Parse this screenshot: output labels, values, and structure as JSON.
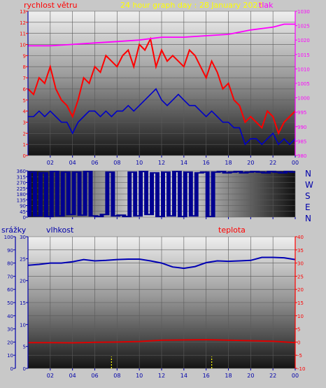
{
  "header": {
    "wind_label": "rychlost větru",
    "title": "24 hour graph day : 28 January 2023",
    "pressure_label": "tlak"
  },
  "lower_header": {
    "rain_label": "srážky",
    "humidity_label": "vlhkost",
    "temp_label": "teplota"
  },
  "compass": [
    "N",
    "W",
    "S",
    "E",
    "N"
  ],
  "colors": {
    "wind_gust": "#ff0000",
    "wind_avg": "#0000c8",
    "pressure": "#ff00ff",
    "direction": "#000090",
    "humidity": "#0000b4",
    "temperature": "#dc0000",
    "rain": "#ffff00",
    "left_axis": "#0000aa",
    "right_axis_pressure": "#ff00ff",
    "right_axis_temp": "#ff0000",
    "header_text": "#ffff00"
  },
  "chart_data": [
    {
      "type": "line",
      "x_ticks": [
        "02",
        "04",
        "06",
        "08",
        "10",
        "12",
        "14",
        "16",
        "18",
        "20",
        "22",
        "00"
      ],
      "ylim_left": [
        0,
        13
      ],
      "y_ticks_left": [
        "0",
        "1",
        "2",
        "3",
        "4",
        "5",
        "6",
        "7",
        "8",
        "9",
        "10",
        "11",
        "12",
        "13"
      ],
      "ylim_right": [
        980,
        1030
      ],
      "y_ticks_right": [
        "980",
        "985",
        "990",
        "995",
        "1000",
        "1005",
        "1010",
        "1015",
        "1020",
        "1025",
        "1030"
      ],
      "series": [
        {
          "name": "rychlost větru",
          "axis": "left",
          "x": [
            0,
            0.5,
            1,
            1.5,
            2,
            2.5,
            3,
            3.5,
            4,
            4.5,
            5,
            5.5,
            6,
            6.5,
            7,
            7.5,
            8,
            8.5,
            9,
            9.5,
            10,
            10.5,
            11,
            11.5,
            12,
            12.5,
            13,
            13.5,
            14,
            14.5,
            15,
            15.5,
            16,
            16.5,
            17,
            17.5,
            18,
            18.5,
            19,
            19.5,
            20,
            20.5,
            21,
            21.5,
            22,
            22.5,
            23,
            23.5,
            24
          ],
          "values": [
            6,
            5.5,
            7,
            6.5,
            8,
            6,
            5,
            4.5,
            3.5,
            5,
            7,
            6.5,
            8,
            7.5,
            9,
            8.5,
            8,
            9,
            9.5,
            8,
            10,
            9.5,
            10.5,
            8,
            9.5,
            8.5,
            9,
            8.5,
            8,
            9.5,
            9,
            8,
            7,
            8.5,
            7.5,
            6,
            6.5,
            5,
            4.5,
            3,
            3.5,
            3,
            2.5,
            4,
            3.5,
            2,
            3,
            3.5,
            4
          ]
        },
        {
          "axis": "left",
          "x": [
            0,
            0.5,
            1,
            1.5,
            2,
            2.5,
            3,
            3.5,
            4,
            4.5,
            5,
            5.5,
            6,
            6.5,
            7,
            7.5,
            8,
            8.5,
            9,
            9.5,
            10,
            10.5,
            11,
            11.5,
            12,
            12.5,
            13,
            13.5,
            14,
            14.5,
            15,
            15.5,
            16,
            16.5,
            17,
            17.5,
            18,
            18.5,
            19,
            19.5,
            20,
            20.5,
            21,
            21.5,
            22,
            22.5,
            23,
            23.5,
            24
          ],
          "values": [
            3.5,
            3.5,
            4,
            3.5,
            4,
            3.5,
            3,
            3,
            2,
            3,
            3.5,
            4,
            4,
            3.5,
            4,
            3.5,
            4,
            4,
            4.5,
            4,
            4.5,
            5,
            5.5,
            6,
            5,
            4.5,
            5,
            5.5,
            5,
            4.5,
            4.5,
            4,
            3.5,
            4,
            3.5,
            3,
            3,
            2.5,
            2.5,
            1,
            1.5,
            1.5,
            1,
            1.5,
            2,
            1,
            1.5,
            1,
            1.5
          ]
        },
        {
          "name": "tlak",
          "axis": "right",
          "x": [
            0,
            2,
            4,
            6,
            8,
            10,
            12,
            14,
            16,
            18,
            20,
            22,
            23,
            24
          ],
          "values": [
            1018,
            1018,
            1018.5,
            1019,
            1019.5,
            1020,
            1021,
            1021,
            1021.5,
            1022,
            1023.5,
            1024.5,
            1025.5,
            1025.5
          ]
        }
      ]
    },
    {
      "type": "line",
      "x_ticks": [
        "02",
        "04",
        "06",
        "08",
        "10",
        "12",
        "14",
        "16",
        "18",
        "20",
        "22",
        "00"
      ],
      "ylim": [
        0,
        360
      ],
      "y_ticks": [
        "0",
        "45",
        "90",
        "135",
        "180",
        "225",
        "270",
        "315",
        "360"
      ],
      "series": [
        {
          "x": [
            0,
            0.5,
            1,
            1.5,
            2,
            2.5,
            3,
            3.5,
            4,
            4.5,
            5,
            5.5,
            6,
            6.5,
            7,
            7.5,
            8,
            8.5,
            9,
            9.5,
            10,
            10.5,
            11,
            11.5,
            12,
            12.5,
            13,
            13.5,
            14,
            14.5,
            15,
            15.5,
            16,
            16.5,
            17,
            17.5,
            18,
            18.5,
            19,
            19.5,
            20,
            20.5,
            21,
            21.5,
            22,
            22.5,
            23,
            23.5,
            24
          ],
          "values": [
            10,
            350,
            10,
            345,
            5,
            355,
            10,
            350,
            20,
            350,
            15,
            355,
            10,
            5,
            20,
            350,
            10,
            15,
            5,
            350,
            10,
            355,
            20,
            345,
            5,
            350,
            10,
            355,
            5,
            350,
            10,
            345,
            350,
            5,
            350,
            355,
            345,
            350,
            355,
            345,
            350,
            355,
            350,
            345,
            355,
            350,
            345,
            355,
            350
          ]
        }
      ]
    },
    {
      "type": "line",
      "x_ticks": [
        "02",
        "04",
        "06",
        "08",
        "10",
        "12",
        "14",
        "16",
        "18",
        "20",
        "22",
        "00"
      ],
      "ylim_rain": [
        0,
        100
      ],
      "y_ticks_rain": [
        "0",
        "10",
        "20",
        "30",
        "40",
        "50",
        "60",
        "70",
        "80",
        "90",
        "100"
      ],
      "ylim_humidity": [
        0,
        30
      ],
      "y_ticks_humidity": [
        "0",
        "5",
        "10",
        "15",
        "20",
        "25",
        "30"
      ],
      "ylim_temp": [
        -10,
        40
      ],
      "y_ticks_temp": [
        "-10",
        "-5",
        "0",
        "5",
        "10",
        "15",
        "20",
        "25",
        "30",
        "35",
        "40"
      ],
      "series": [
        {
          "name": "vlhkost",
          "axis": "humidity",
          "x": [
            0,
            1,
            2,
            3,
            4,
            5,
            6,
            7,
            8,
            9,
            10,
            11,
            12,
            13,
            14,
            15,
            16,
            17,
            18,
            19,
            20,
            21,
            22,
            23,
            24
          ],
          "values": [
            23.5,
            23.7,
            24,
            24,
            24.3,
            24.8,
            24.5,
            24.6,
            24.8,
            24.9,
            24.9,
            24.5,
            24,
            23.1,
            22.8,
            23.2,
            24.1,
            24.5,
            24.4,
            24.5,
            24.6,
            25.3,
            25.3,
            25.2,
            24.8
          ]
        },
        {
          "name": "teplota",
          "axis": "temp",
          "x": [
            0,
            2,
            4,
            6,
            8,
            10,
            12,
            14,
            16,
            18,
            20,
            22,
            24
          ],
          "values": [
            -0.2,
            -0.2,
            -0.3,
            -0.1,
            0,
            0.2,
            0.7,
            0.8,
            0.9,
            0.7,
            0.5,
            0.3,
            -0.2
          ]
        },
        {
          "name": "srážky",
          "axis": "rain",
          "x": [
            7.5,
            16.5
          ],
          "values": [
            5,
            5
          ]
        }
      ]
    }
  ]
}
